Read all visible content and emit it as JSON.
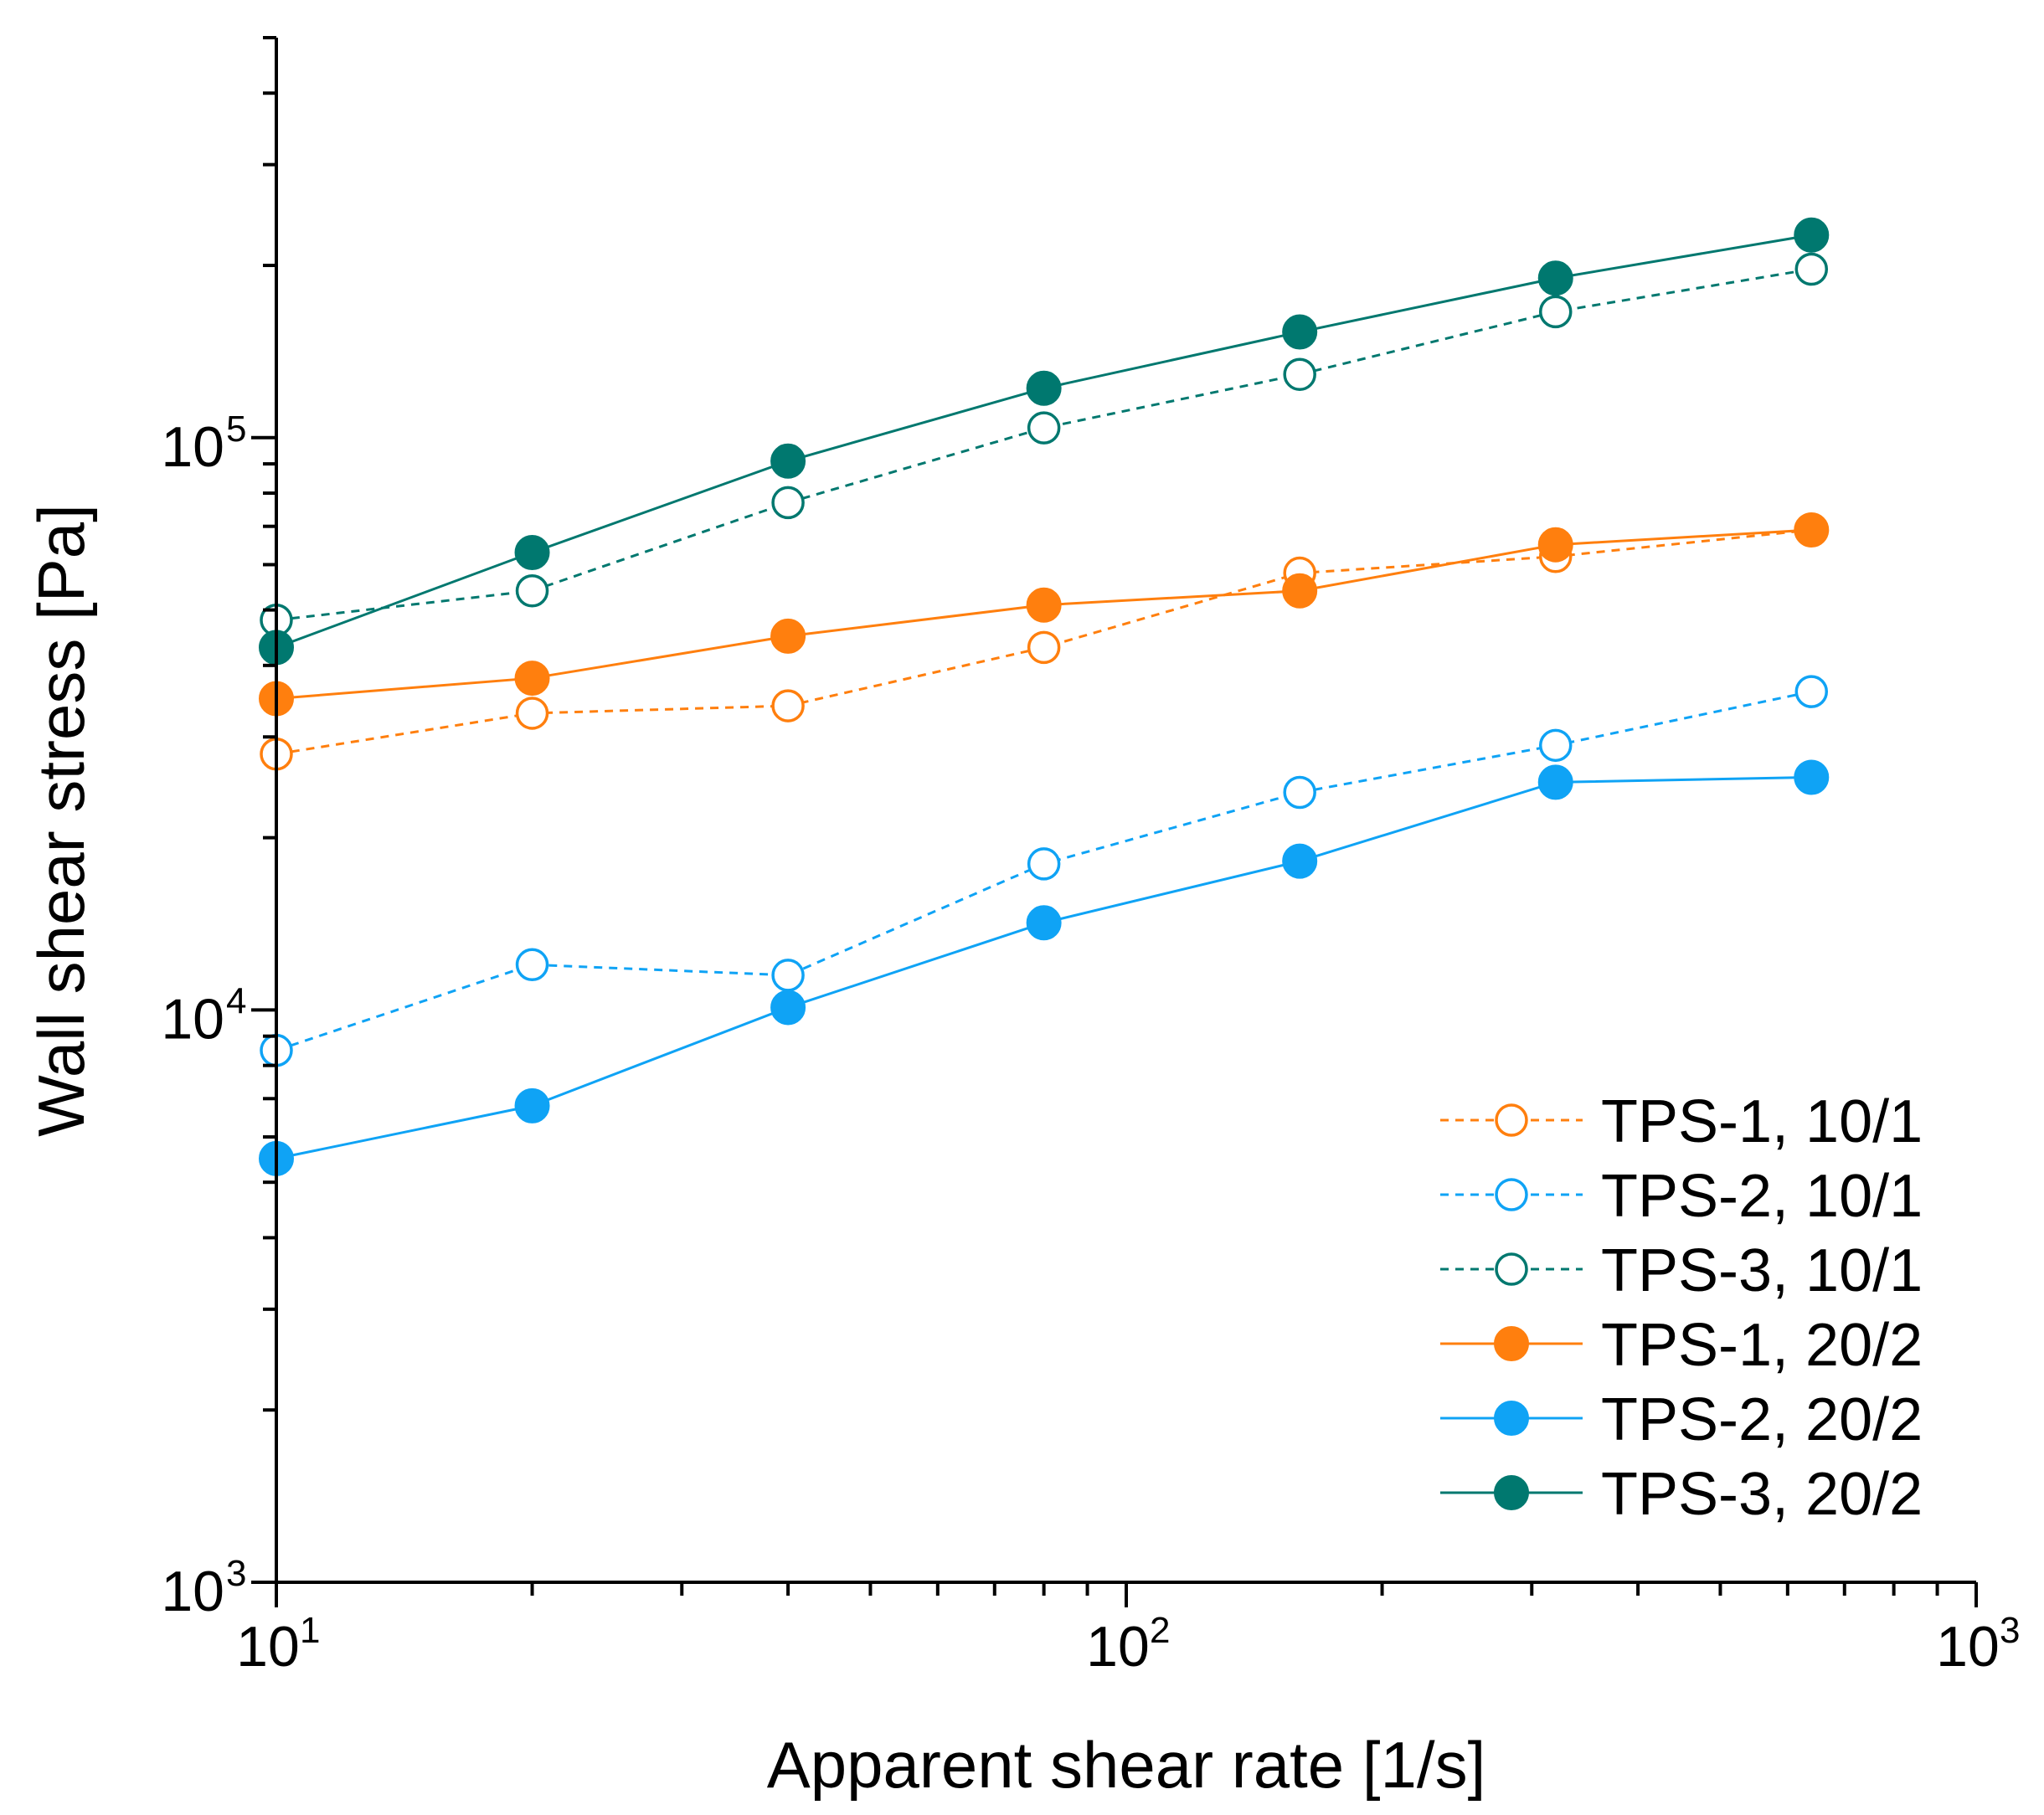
{
  "chart_data": {
    "type": "line",
    "title": "",
    "xlabel": "Apparent shear rate [1/s]",
    "ylabel": "Wall shear stress [Pa]",
    "xscale": "log",
    "yscale": "log",
    "xlim": [
      10,
      1000
    ],
    "ylim": [
      1000,
      500000
    ],
    "x_ticks": [
      {
        "value": 10,
        "base": "10",
        "exp": "1"
      },
      {
        "value": 100,
        "base": "10",
        "exp": "2"
      },
      {
        "value": 1000,
        "base": "10",
        "exp": "3"
      }
    ],
    "y_ticks": [
      {
        "value": 1000,
        "base": "10",
        "exp": "3"
      },
      {
        "value": 10000,
        "base": "10",
        "exp": "4"
      },
      {
        "value": 100000,
        "base": "10",
        "exp": "5"
      }
    ],
    "legend_position": "bottom-right",
    "x": [
      10,
      20,
      40,
      80,
      160,
      320,
      640
    ],
    "series": [
      {
        "name": "TPS-1, 10/1",
        "color": "#FF7F0E",
        "style": "dashed",
        "marker": "open",
        "values": [
          28000,
          33000,
          34000,
          43000,
          58000,
          62000,
          69000
        ]
      },
      {
        "name": "TPS-2, 10/1",
        "color": "#0FA3F5",
        "style": "dashed",
        "marker": "open",
        "values": [
          8500,
          12000,
          11500,
          18000,
          24000,
          29000,
          36000
        ]
      },
      {
        "name": "TPS-3, 10/1",
        "color": "#00786F",
        "style": "dashed",
        "marker": "open",
        "values": [
          48000,
          54000,
          77000,
          104000,
          129000,
          166000,
          197000
        ]
      },
      {
        "name": "TPS-1, 20/2",
        "color": "#FF7F0E",
        "style": "solid",
        "marker": "filled",
        "values": [
          35000,
          38000,
          45000,
          51000,
          54000,
          65000,
          69000
        ]
      },
      {
        "name": "TPS-2, 20/2",
        "color": "#0FA3F5",
        "style": "solid",
        "marker": "filled",
        "values": [
          5500,
          6800,
          10100,
          14200,
          18200,
          25000,
          25500
        ]
      },
      {
        "name": "TPS-3, 20/2",
        "color": "#00786F",
        "style": "solid",
        "marker": "filled",
        "values": [
          43000,
          63000,
          91000,
          122000,
          153000,
          190000,
          226000
        ]
      }
    ]
  }
}
